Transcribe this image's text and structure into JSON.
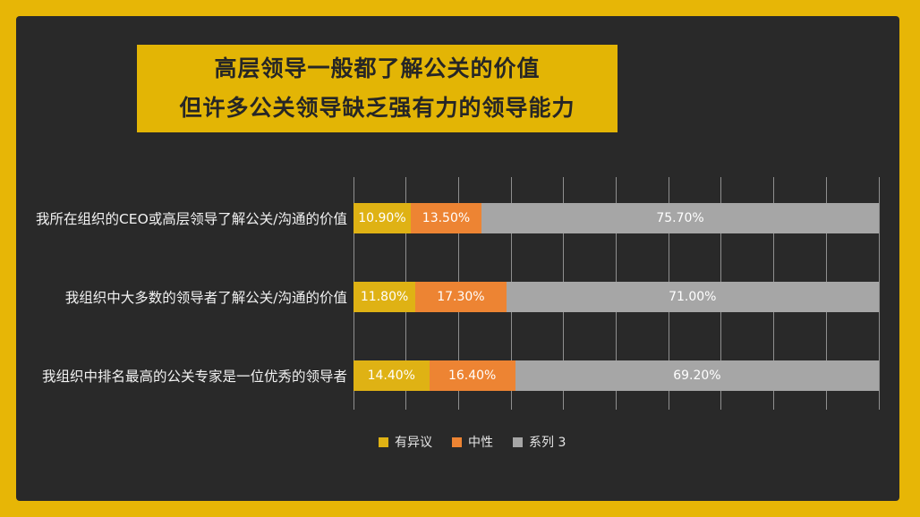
{
  "window": {
    "frame_color": "#E7B606",
    "panel_color": "#292929"
  },
  "title": {
    "line1": "高层领导一般都了解公关的价值",
    "line2": "但许多公关领导缺乏强有力的领导能力",
    "background": "#E3B505",
    "text_color": "#262626"
  },
  "chart_data": {
    "type": "bar",
    "orientation": "horizontal_stacked",
    "title": "",
    "xlabel": "",
    "ylabel": "",
    "categories": [
      "我所在组织的CEO或高层领导了解公关/沟通的价值",
      "我组织中大多数的领导者了解公关/沟通的价值",
      "我组织中排名最高的公关专家是一位优秀的领导者"
    ],
    "series": [
      {
        "name": "有异议",
        "color": "#DFB214",
        "values": [
          10.9,
          11.8,
          14.4
        ],
        "labels": [
          "10.90%",
          "11.80%",
          "14.40%"
        ]
      },
      {
        "name": "中性",
        "color": "#ED8433",
        "values": [
          13.5,
          17.3,
          16.4
        ],
        "labels": [
          "13.50%",
          "17.30%",
          "16.40%"
        ]
      },
      {
        "name": "系列 3",
        "color": "#A6A6A6",
        "values": [
          75.7,
          71.0,
          69.2
        ],
        "labels": [
          "75.70%",
          "71.00%",
          "69.20%"
        ]
      }
    ],
    "xlim": [
      0,
      100
    ],
    "gridline_step_percent": 10,
    "grid": "vertical",
    "legend_position": "bottom",
    "value_label_color": "#ffffff"
  }
}
